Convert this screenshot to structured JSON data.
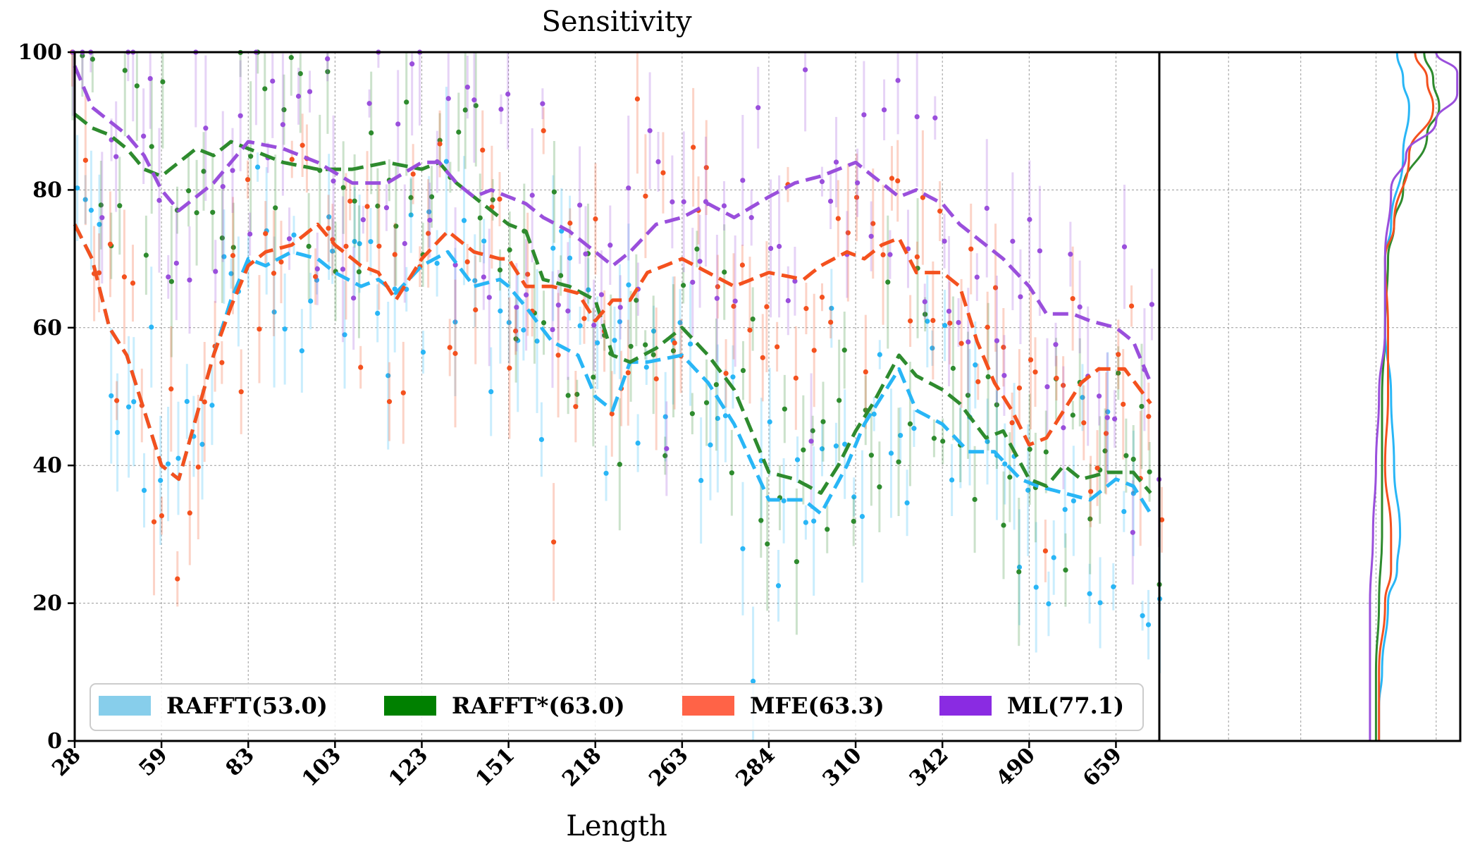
{
  "chart_data": {
    "type": "line",
    "title": "Sensitivity",
    "xlabel": "Length",
    "ylabel": "",
    "ylim": [
      0,
      100
    ],
    "yticks": [
      0,
      20,
      40,
      60,
      80,
      100
    ],
    "x_tick_labels": [
      "28",
      "59",
      "83",
      "103",
      "123",
      "151",
      "218",
      "263",
      "284",
      "310",
      "342",
      "490",
      "659"
    ],
    "x_index_range": [
      0,
      125
    ],
    "x_tick_step": 10,
    "grid": true,
    "legend_position": "bottom",
    "series": [
      {
        "name": "RAFFT",
        "legend_label": "RAFFT(53.0)",
        "legend_color": "#87ceeb",
        "color": "#29b6f6",
        "anchors": [
          [
            0,
            75
          ],
          [
            2,
            70
          ],
          [
            4,
            60
          ],
          [
            6,
            56
          ],
          [
            8,
            48
          ],
          [
            10,
            40
          ],
          [
            12,
            38
          ],
          [
            14,
            47
          ],
          [
            16,
            56
          ],
          [
            18,
            64
          ],
          [
            20,
            70
          ],
          [
            22,
            69
          ],
          [
            25,
            71
          ],
          [
            28,
            70
          ],
          [
            30,
            68
          ],
          [
            33,
            66
          ],
          [
            35,
            67
          ],
          [
            37,
            65
          ],
          [
            40,
            69
          ],
          [
            43,
            71
          ],
          [
            46,
            66
          ],
          [
            49,
            67
          ],
          [
            50,
            66
          ],
          [
            52,
            63
          ],
          [
            55,
            58
          ],
          [
            58,
            56
          ],
          [
            60,
            50
          ],
          [
            62,
            48
          ],
          [
            64,
            55
          ],
          [
            66,
            55
          ],
          [
            70,
            56
          ],
          [
            73,
            52
          ],
          [
            76,
            46
          ],
          [
            80,
            35
          ],
          [
            84,
            35
          ],
          [
            86,
            33
          ],
          [
            89,
            40
          ],
          [
            91,
            46
          ],
          [
            93,
            50
          ],
          [
            95,
            54
          ],
          [
            97,
            48
          ],
          [
            100,
            46
          ],
          [
            103,
            42
          ],
          [
            106,
            42
          ],
          [
            109,
            38
          ],
          [
            111,
            37
          ],
          [
            114,
            36
          ],
          [
            117,
            35
          ],
          [
            120,
            38
          ],
          [
            122,
            37
          ],
          [
            124,
            33
          ]
        ],
        "density": [
          [
            100,
            79
          ],
          [
            96,
            81
          ],
          [
            92,
            83
          ],
          [
            85,
            81
          ],
          [
            75,
            77
          ],
          [
            70,
            75
          ],
          [
            60,
            75
          ],
          [
            50,
            77
          ],
          [
            40,
            78
          ],
          [
            30,
            80
          ],
          [
            25,
            79
          ],
          [
            20,
            76
          ],
          [
            10,
            74
          ],
          [
            5,
            73
          ],
          [
            0,
            73
          ]
        ]
      },
      {
        "name": "RAFFT*",
        "legend_label": "RAFFT*(63.0)",
        "legend_color": "#008000",
        "color": "#2e8b2e",
        "anchors": [
          [
            0,
            91
          ],
          [
            2,
            89
          ],
          [
            4,
            88
          ],
          [
            6,
            86
          ],
          [
            8,
            83
          ],
          [
            10,
            82
          ],
          [
            12,
            84
          ],
          [
            14,
            86
          ],
          [
            16,
            85
          ],
          [
            18,
            87
          ],
          [
            20,
            86
          ],
          [
            24,
            84
          ],
          [
            28,
            83
          ],
          [
            32,
            83
          ],
          [
            36,
            84
          ],
          [
            40,
            83
          ],
          [
            42,
            84
          ],
          [
            44,
            81
          ],
          [
            46,
            79
          ],
          [
            48,
            77
          ],
          [
            50,
            75
          ],
          [
            52,
            74
          ],
          [
            54,
            67
          ],
          [
            57,
            66
          ],
          [
            60,
            64
          ],
          [
            62,
            56
          ],
          [
            64,
            55
          ],
          [
            67,
            57
          ],
          [
            70,
            60
          ],
          [
            73,
            56
          ],
          [
            76,
            51
          ],
          [
            80,
            39
          ],
          [
            83,
            38
          ],
          [
            86,
            36
          ],
          [
            88,
            40
          ],
          [
            90,
            45
          ],
          [
            92,
            49
          ],
          [
            95,
            56
          ],
          [
            97,
            53
          ],
          [
            100,
            51
          ],
          [
            102,
            49
          ],
          [
            105,
            44
          ],
          [
            107,
            45
          ],
          [
            110,
            38
          ],
          [
            112,
            37
          ],
          [
            114,
            40
          ],
          [
            116,
            38
          ],
          [
            119,
            39
          ],
          [
            122,
            39
          ],
          [
            124,
            36
          ]
        ],
        "density": [
          [
            100,
            88
          ],
          [
            96,
            91
          ],
          [
            92,
            93
          ],
          [
            88,
            89
          ],
          [
            80,
            81
          ],
          [
            75,
            78
          ],
          [
            70,
            76
          ],
          [
            60,
            75
          ],
          [
            50,
            74
          ],
          [
            40,
            74
          ],
          [
            30,
            74
          ],
          [
            20,
            73
          ],
          [
            10,
            72
          ],
          [
            5,
            72
          ],
          [
            0,
            72
          ]
        ]
      },
      {
        "name": "MFE",
        "legend_label": "MFE(63.3)",
        "legend_color": "#ff6347",
        "color": "#f4511e",
        "anchors": [
          [
            0,
            75
          ],
          [
            2,
            70
          ],
          [
            4,
            60
          ],
          [
            6,
            56
          ],
          [
            8,
            48
          ],
          [
            10,
            40
          ],
          [
            12,
            38
          ],
          [
            14,
            47
          ],
          [
            16,
            56
          ],
          [
            18,
            63
          ],
          [
            20,
            69
          ],
          [
            22,
            71
          ],
          [
            25,
            72
          ],
          [
            28,
            75
          ],
          [
            30,
            72
          ],
          [
            33,
            69
          ],
          [
            35,
            68
          ],
          [
            37,
            64
          ],
          [
            40,
            70
          ],
          [
            43,
            74
          ],
          [
            46,
            71
          ],
          [
            49,
            70
          ],
          [
            50,
            70
          ],
          [
            52,
            66
          ],
          [
            55,
            66
          ],
          [
            58,
            65
          ],
          [
            60,
            61
          ],
          [
            62,
            64
          ],
          [
            64,
            64
          ],
          [
            66,
            68
          ],
          [
            70,
            70
          ],
          [
            73,
            68
          ],
          [
            76,
            66
          ],
          [
            80,
            68
          ],
          [
            84,
            67
          ],
          [
            86,
            69
          ],
          [
            89,
            71
          ],
          [
            91,
            70
          ],
          [
            93,
            72
          ],
          [
            95,
            73
          ],
          [
            97,
            68
          ],
          [
            100,
            68
          ],
          [
            102,
            66
          ],
          [
            104,
            58
          ],
          [
            106,
            52
          ],
          [
            108,
            48
          ],
          [
            110,
            43
          ],
          [
            112,
            44
          ],
          [
            114,
            48
          ],
          [
            116,
            52
          ],
          [
            118,
            54
          ],
          [
            121,
            54
          ],
          [
            124,
            49
          ]
        ],
        "density": [
          [
            100,
            85
          ],
          [
            96,
            89
          ],
          [
            92,
            91
          ],
          [
            85,
            83
          ],
          [
            75,
            78
          ],
          [
            70,
            75
          ],
          [
            60,
            76
          ],
          [
            50,
            76
          ],
          [
            40,
            75
          ],
          [
            30,
            77
          ],
          [
            25,
            77
          ],
          [
            20,
            75
          ],
          [
            10,
            73
          ],
          [
            5,
            73
          ],
          [
            0,
            73
          ]
        ]
      },
      {
        "name": "ML",
        "legend_label": "ML(77.1)",
        "legend_color": "#8a2be2",
        "color": "#9a4fdc",
        "anchors": [
          [
            0,
            98
          ],
          [
            2,
            92
          ],
          [
            4,
            90
          ],
          [
            6,
            88
          ],
          [
            8,
            85
          ],
          [
            10,
            80
          ],
          [
            12,
            77
          ],
          [
            14,
            79
          ],
          [
            16,
            81
          ],
          [
            18,
            84
          ],
          [
            20,
            87
          ],
          [
            24,
            86
          ],
          [
            28,
            84
          ],
          [
            32,
            81
          ],
          [
            36,
            81
          ],
          [
            40,
            84
          ],
          [
            42,
            84
          ],
          [
            44,
            81
          ],
          [
            46,
            79
          ],
          [
            48,
            80
          ],
          [
            50,
            79
          ],
          [
            52,
            78
          ],
          [
            54,
            76
          ],
          [
            57,
            74
          ],
          [
            60,
            71
          ],
          [
            62,
            69
          ],
          [
            64,
            71
          ],
          [
            67,
            75
          ],
          [
            70,
            76
          ],
          [
            73,
            78
          ],
          [
            76,
            76
          ],
          [
            80,
            79
          ],
          [
            83,
            81
          ],
          [
            86,
            82
          ],
          [
            88,
            83
          ],
          [
            90,
            84
          ],
          [
            92,
            82
          ],
          [
            95,
            79
          ],
          [
            97,
            80
          ],
          [
            100,
            78
          ],
          [
            102,
            75
          ],
          [
            105,
            72
          ],
          [
            107,
            70
          ],
          [
            110,
            66
          ],
          [
            112,
            62
          ],
          [
            115,
            62
          ],
          [
            117,
            61
          ],
          [
            120,
            60
          ],
          [
            122,
            58
          ],
          [
            124,
            52
          ]
        ],
        "density": [
          [
            100,
            92
          ],
          [
            97,
            99
          ],
          [
            94,
            99
          ],
          [
            90,
            92
          ],
          [
            85,
            82
          ],
          [
            80,
            77
          ],
          [
            70,
            75
          ],
          [
            60,
            75
          ],
          [
            50,
            73
          ],
          [
            40,
            72
          ],
          [
            30,
            71
          ],
          [
            20,
            70
          ],
          [
            10,
            70
          ],
          [
            5,
            70
          ],
          [
            0,
            70
          ]
        ]
      }
    ]
  }
}
